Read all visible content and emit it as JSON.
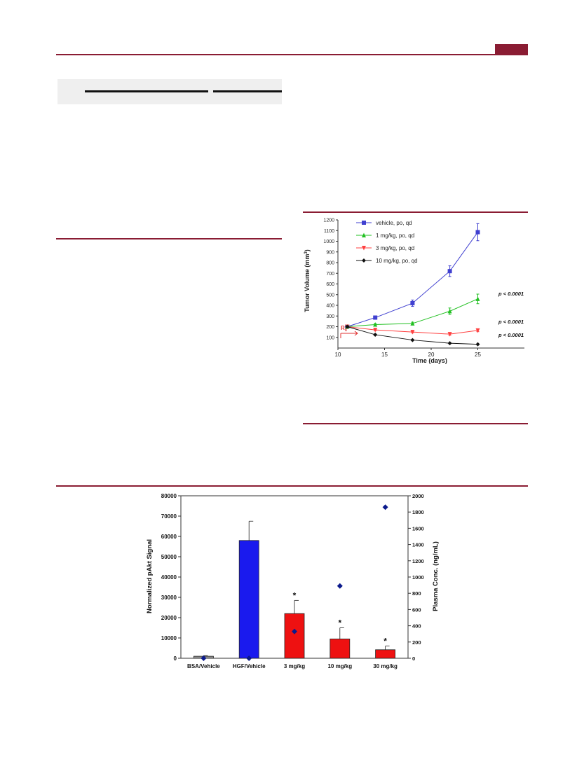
{
  "colors": {
    "accent": "#8a1c33",
    "vehicle": "#4040d0",
    "mg1": "#22c022",
    "mg3": "#ff4040",
    "mg10": "#111111",
    "bar_gray": "#9a9a9a",
    "bar_blue": "#1a1aee",
    "bar_red": "#ee1111",
    "marker": "#0b1a8c"
  },
  "chart_data": [
    {
      "type": "line",
      "xlabel": "Time (days)",
      "ylabel": "Tumor Volume (mm³)",
      "ylabel_main": "Tumor Volume (mm",
      "ylabel_sup": "3",
      "ylabel_end": ")",
      "xlim": [
        10,
        30
      ],
      "ylim": [
        0,
        1200
      ],
      "xticks": [
        "10",
        "15",
        "20",
        "25"
      ],
      "yticks": [
        "100",
        "200",
        "300",
        "400",
        "500",
        "600",
        "700",
        "800",
        "900",
        "1000",
        "1100",
        "1200"
      ],
      "dosing_label_main": "R",
      "dosing_label_sub": "x",
      "series": [
        {
          "name": "vehicle, po, qd",
          "marker": "square",
          "x": [
            11,
            14,
            18,
            22,
            25
          ],
          "y": [
            200,
            285,
            420,
            720,
            1085
          ],
          "err": [
            10,
            15,
            30,
            50,
            80
          ]
        },
        {
          "name": "1 mg/kg, po, qd",
          "marker": "triangle-up",
          "x": [
            11,
            14,
            18,
            22,
            25
          ],
          "y": [
            200,
            220,
            230,
            345,
            460
          ],
          "err": [
            10,
            10,
            12,
            30,
            45
          ],
          "annotation": "p < 0.0001"
        },
        {
          "name": "3 mg/kg, po, qd",
          "marker": "triangle-down",
          "x": [
            11,
            14,
            18,
            22,
            25
          ],
          "y": [
            200,
            170,
            150,
            130,
            165
          ],
          "err": [
            8,
            8,
            8,
            10,
            12
          ],
          "annotation": "p < 0.0001"
        },
        {
          "name": "10 mg/kg, po, qd",
          "marker": "diamond",
          "x": [
            11,
            14,
            18,
            22,
            25
          ],
          "y": [
            200,
            125,
            75,
            45,
            35
          ],
          "err": [
            8,
            6,
            5,
            4,
            4
          ],
          "annotation": "p < 0.0001"
        }
      ]
    },
    {
      "type": "bar",
      "categories": [
        "BSA/Vehicle",
        "HGF/Vehicle",
        "3 mg/kg",
        "10 mg/kg",
        "30 mg/kg"
      ],
      "values": [
        1000,
        58000,
        22000,
        9500,
        4200
      ],
      "errors": [
        300,
        9500,
        6500,
        5500,
        1800
      ],
      "significance": [
        "",
        "",
        "*",
        "*",
        "*"
      ],
      "ylabel": "Normalized pAkt Signal",
      "ylim": [
        0,
        80000
      ],
      "yticks": [
        "0",
        "10000",
        "20000",
        "30000",
        "40000",
        "50000",
        "60000",
        "70000",
        "80000"
      ],
      "secondary": {
        "ylabel": "Plasma Conc. (ng/mL)",
        "ylim": [
          0,
          2000
        ],
        "yticks": [
          "0",
          "200",
          "400",
          "600",
          "800",
          "1000",
          "1200",
          "1400",
          "1600",
          "1800",
          "2000"
        ],
        "values": [
          0,
          0,
          330,
          890,
          1860
        ]
      }
    }
  ]
}
